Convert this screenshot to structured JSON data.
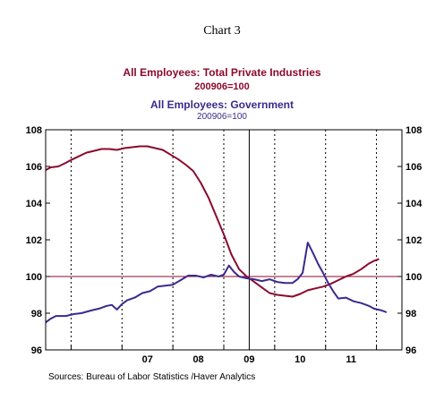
{
  "chart_data": {
    "type": "line",
    "title": "Chart 3",
    "series": [
      {
        "name": "All Employees: Total Private Industries",
        "subtitle": "200906=100",
        "color": "#8b0a2e",
        "points": [
          [
            2005.5,
            105.8
          ],
          [
            2005.6,
            105.95
          ],
          [
            2005.75,
            106.0
          ],
          [
            2005.9,
            106.2
          ],
          [
            2006.0,
            106.35
          ],
          [
            2006.15,
            106.55
          ],
          [
            2006.3,
            106.75
          ],
          [
            2006.45,
            106.85
          ],
          [
            2006.6,
            106.95
          ],
          [
            2006.75,
            106.95
          ],
          [
            2006.9,
            106.9
          ],
          [
            2007.05,
            107.0
          ],
          [
            2007.2,
            107.05
          ],
          [
            2007.35,
            107.1
          ],
          [
            2007.5,
            107.1
          ],
          [
            2007.65,
            107.0
          ],
          [
            2007.8,
            106.9
          ],
          [
            2007.95,
            106.65
          ],
          [
            2008.1,
            106.4
          ],
          [
            2008.25,
            106.1
          ],
          [
            2008.4,
            105.75
          ],
          [
            2008.55,
            105.1
          ],
          [
            2008.7,
            104.3
          ],
          [
            2008.85,
            103.3
          ],
          [
            2009.0,
            102.3
          ],
          [
            2009.15,
            101.2
          ],
          [
            2009.3,
            100.4
          ],
          [
            2009.45,
            100.0
          ],
          [
            2009.6,
            99.7
          ],
          [
            2009.75,
            99.4
          ],
          [
            2009.9,
            99.1
          ],
          [
            2010.05,
            99.0
          ],
          [
            2010.2,
            98.95
          ],
          [
            2010.35,
            98.9
          ],
          [
            2010.5,
            99.05
          ],
          [
            2010.65,
            99.25
          ],
          [
            2010.8,
            99.35
          ],
          [
            2010.95,
            99.45
          ],
          [
            2011.1,
            99.6
          ],
          [
            2011.25,
            99.8
          ],
          [
            2011.4,
            100.0
          ],
          [
            2011.55,
            100.15
          ],
          [
            2011.7,
            100.4
          ],
          [
            2011.85,
            100.7
          ],
          [
            2011.95,
            100.85
          ],
          [
            2012.05,
            100.95
          ]
        ]
      },
      {
        "name": "All Employees: Government",
        "subtitle": "200906=100",
        "color": "#3b2a8c",
        "points": [
          [
            2005.5,
            97.5
          ],
          [
            2005.6,
            97.7
          ],
          [
            2005.7,
            97.85
          ],
          [
            2005.9,
            97.85
          ],
          [
            2006.05,
            97.95
          ],
          [
            2006.2,
            98.0
          ],
          [
            2006.4,
            98.15
          ],
          [
            2006.55,
            98.25
          ],
          [
            2006.7,
            98.4
          ],
          [
            2006.8,
            98.45
          ],
          [
            2006.9,
            98.2
          ],
          [
            2007.0,
            98.5
          ],
          [
            2007.1,
            98.7
          ],
          [
            2007.25,
            98.85
          ],
          [
            2007.4,
            99.1
          ],
          [
            2007.55,
            99.2
          ],
          [
            2007.7,
            99.45
          ],
          [
            2007.85,
            99.5
          ],
          [
            2008.0,
            99.55
          ],
          [
            2008.15,
            99.8
          ],
          [
            2008.3,
            100.05
          ],
          [
            2008.45,
            100.05
          ],
          [
            2008.6,
            99.95
          ],
          [
            2008.75,
            100.1
          ],
          [
            2008.9,
            100.0
          ],
          [
            2009.0,
            100.1
          ],
          [
            2009.1,
            100.6
          ],
          [
            2009.2,
            100.25
          ],
          [
            2009.3,
            100.0
          ],
          [
            2009.45,
            99.9
          ],
          [
            2009.6,
            99.85
          ],
          [
            2009.75,
            99.75
          ],
          [
            2009.9,
            99.85
          ],
          [
            2010.05,
            99.7
          ],
          [
            2010.2,
            99.65
          ],
          [
            2010.35,
            99.65
          ],
          [
            2010.45,
            99.85
          ],
          [
            2010.55,
            100.2
          ],
          [
            2010.65,
            101.85
          ],
          [
            2010.75,
            101.3
          ],
          [
            2010.85,
            100.7
          ],
          [
            2010.95,
            100.2
          ],
          [
            2011.05,
            99.65
          ],
          [
            2011.15,
            99.2
          ],
          [
            2011.25,
            98.8
          ],
          [
            2011.4,
            98.85
          ],
          [
            2011.55,
            98.65
          ],
          [
            2011.7,
            98.55
          ],
          [
            2011.85,
            98.4
          ],
          [
            2011.95,
            98.25
          ],
          [
            2012.1,
            98.15
          ],
          [
            2012.2,
            98.05
          ]
        ]
      }
    ],
    "reference_line": {
      "y": 100,
      "color": "#8b0a2e"
    },
    "ylim": [
      96,
      108
    ],
    "yticks": [
      96,
      98,
      100,
      102,
      104,
      106,
      108
    ],
    "y_tick_labels": [
      "96",
      "98",
      "100",
      "102",
      "104",
      "106",
      "108"
    ],
    "xlim": [
      2005.5,
      2012.5
    ],
    "x_tick_labels": [
      {
        "x": 2007,
        "label": "07"
      },
      {
        "x": 2008,
        "label": "08"
      },
      {
        "x": 2009,
        "label": "09"
      },
      {
        "x": 2010,
        "label": "10"
      },
      {
        "x": 2011,
        "label": "11"
      }
    ],
    "vertical_marker": {
      "x": 2009.5
    },
    "grid": "vertical-dotted",
    "source": "Sources:  Bureau of Labor Statistics /Haver Analytics"
  }
}
